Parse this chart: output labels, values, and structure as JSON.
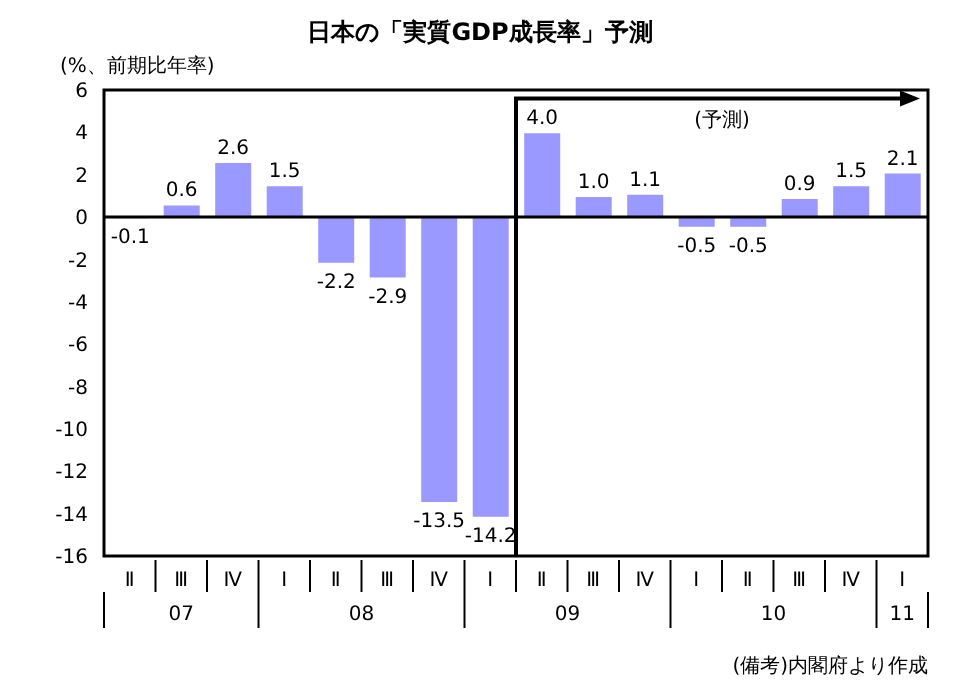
{
  "chart_data": {
    "type": "bar",
    "title": "日本の「実質GDP成長率」予測",
    "ylabel": "(%、前期比年率)",
    "categories": [
      "Ⅱ",
      "Ⅲ",
      "Ⅳ",
      "Ⅰ",
      "Ⅱ",
      "Ⅲ",
      "Ⅳ",
      "Ⅰ",
      "Ⅱ",
      "Ⅲ",
      "Ⅳ",
      "Ⅰ",
      "Ⅱ",
      "Ⅲ",
      "Ⅳ",
      "Ⅰ"
    ],
    "values": [
      -0.1,
      0.6,
      2.6,
      1.5,
      -2.2,
      -2.9,
      -13.5,
      -14.2,
      4.0,
      1.0,
      1.1,
      -0.5,
      -0.5,
      0.9,
      1.5,
      2.1
    ],
    "color": "#9999ff",
    "value_labels": [
      "-0.1",
      "0.6",
      "2.6",
      "1.5",
      "-2.2",
      "-2.9",
      "-13.5",
      "-14.2",
      "4.0",
      "1.0",
      "1.1",
      "-0.5",
      "-0.5",
      "0.9",
      "1.5",
      "2.1"
    ],
    "legend": false,
    "ylim": [
      -16,
      6
    ],
    "yticks": [
      -16,
      -14,
      -12,
      -10,
      -8,
      -6,
      -4,
      -2,
      0,
      2,
      4,
      6
    ],
    "annotations": [
      "07",
      "08",
      "09",
      "10",
      "11",
      "(予測)",
      "(備考)内閣府より作成"
    ]
  }
}
